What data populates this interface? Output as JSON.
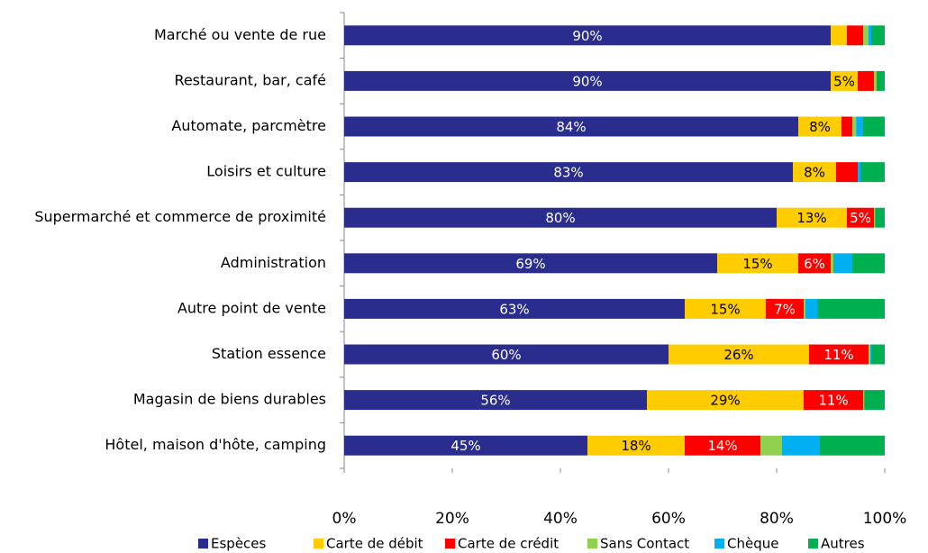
{
  "chart_data": {
    "type": "stacked_barh",
    "categories": [
      "Marché ou vente de rue",
      "Restaurant, bar, café",
      "Automate, parcmètre",
      "Loisirs et culture",
      "Supermarché et commerce de proximité",
      "Administration",
      "Autre point de vente",
      "Station essence",
      "Magasin de biens durables",
      "Hôtel, maison d'hôte, camping"
    ],
    "series": [
      {
        "name": "Espèces",
        "color": "#2b2d8e",
        "values": [
          90,
          90,
          84,
          83,
          80,
          69,
          63,
          60,
          56,
          45
        ],
        "value_labels": [
          "90%",
          "90%",
          "84%",
          "83%",
          "80%",
          "69%",
          "63%",
          "60%",
          "56%",
          "45%"
        ]
      },
      {
        "name": "Carte de débit",
        "color": "#ffcc00",
        "values": [
          3,
          5,
          8,
          8,
          13,
          15,
          15,
          26,
          29,
          18
        ],
        "value_labels": [
          null,
          "5%",
          "8%",
          "8%",
          "13%",
          "15%",
          "15%",
          "26%",
          "29%",
          "18%"
        ]
      },
      {
        "name": "Carte de crédit",
        "color": "#ff0000",
        "values": [
          3,
          3,
          2,
          4,
          5,
          6,
          7,
          11,
          11,
          14
        ],
        "value_labels": [
          null,
          null,
          null,
          null,
          "5%",
          "6%",
          "7%",
          "11%",
          "11%",
          "14%"
        ]
      },
      {
        "name": "Sans Contact",
        "color": "#92d050",
        "values": [
          1,
          0.5,
          0.7,
          0,
          0.2,
          0.5,
          0.3,
          0.3,
          0.2,
          4
        ]
      },
      {
        "name": "Chèque",
        "color": "#00b0f0",
        "values": [
          0.5,
          0,
          1.3,
          0.5,
          0,
          3.5,
          2.2,
          0.2,
          0,
          7
        ]
      },
      {
        "name": "Autres",
        "color": "#00b050",
        "values": [
          2.5,
          1.5,
          4,
          4.5,
          1.8,
          6,
          12.5,
          2.5,
          3.8,
          12
        ]
      }
    ],
    "xlim": [
      0,
      100
    ],
    "xticks": [
      {
        "value": 0,
        "label": "0%"
      },
      {
        "value": 20,
        "label": "20%"
      },
      {
        "value": 40,
        "label": "40%"
      },
      {
        "value": 60,
        "label": "60%"
      },
      {
        "value": 80,
        "label": "80%"
      },
      {
        "value": 100,
        "label": "100%"
      }
    ],
    "legend": "bottom"
  }
}
